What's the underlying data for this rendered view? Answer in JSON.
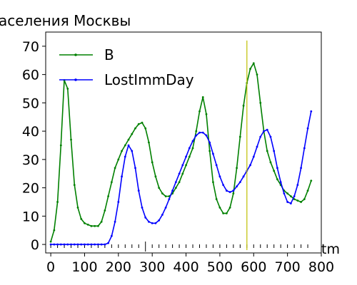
{
  "chart_data": {
    "type": "line",
    "title": "аселения Москвы",
    "xlabel": "tm",
    "ylabel": "",
    "xlim": [
      -15,
      800
    ],
    "ylim": [
      -3,
      75
    ],
    "xticks": [
      0,
      100,
      200,
      300,
      400,
      500,
      600,
      700,
      800
    ],
    "yticks": [
      0,
      10,
      20,
      30,
      40,
      50,
      60,
      70
    ],
    "grid": false,
    "legend_position": "top-left",
    "series": [
      {
        "name": "B",
        "color": "#008000",
        "marker": "dot",
        "x": [
          0,
          10,
          20,
          30,
          40,
          50,
          60,
          70,
          80,
          90,
          100,
          110,
          120,
          130,
          140,
          150,
          160,
          170,
          180,
          190,
          200,
          210,
          220,
          230,
          240,
          250,
          260,
          270,
          280,
          290,
          300,
          310,
          320,
          330,
          340,
          350,
          360,
          370,
          380,
          390,
          400,
          410,
          420,
          430,
          440,
          450,
          460,
          470,
          480,
          490,
          500,
          510,
          520,
          530,
          540,
          550,
          560,
          570,
          580,
          590,
          600,
          610,
          620,
          630,
          640,
          650,
          660,
          670,
          680,
          690,
          700,
          710,
          720,
          730,
          740,
          750,
          760,
          770
        ],
        "y": [
          1,
          5,
          15,
          35,
          58,
          55,
          37,
          21,
          13,
          9,
          7.5,
          7,
          6.5,
          6.5,
          6.5,
          8,
          12,
          17,
          22,
          27,
          30,
          33,
          35,
          37,
          39,
          41,
          42.5,
          43,
          41,
          36,
          29,
          24,
          20,
          18,
          17,
          17,
          18,
          20,
          22,
          25,
          28,
          31,
          34,
          40,
          47,
          52,
          46,
          33,
          22,
          16,
          13,
          11,
          11,
          13,
          18,
          27,
          38,
          49,
          57,
          62,
          64,
          60,
          50,
          40,
          33,
          29,
          26,
          23,
          21,
          19,
          18,
          17,
          16,
          15.5,
          15,
          16,
          19,
          22.5
        ]
      },
      {
        "name": "LostImmDay",
        "color": "#0000ff",
        "marker": "dot",
        "x": [
          0,
          10,
          20,
          30,
          40,
          50,
          60,
          70,
          80,
          90,
          100,
          110,
          120,
          130,
          140,
          150,
          160,
          170,
          180,
          190,
          200,
          210,
          220,
          230,
          240,
          250,
          260,
          270,
          280,
          290,
          300,
          310,
          320,
          330,
          340,
          350,
          360,
          370,
          380,
          390,
          400,
          410,
          420,
          430,
          440,
          450,
          460,
          470,
          480,
          490,
          500,
          510,
          520,
          530,
          540,
          550,
          560,
          570,
          580,
          590,
          600,
          610,
          620,
          630,
          640,
          650,
          660,
          670,
          680,
          690,
          700,
          710,
          720,
          730,
          740,
          750,
          760,
          770
        ],
        "y": [
          0,
          0,
          0,
          0,
          0,
          0,
          0,
          0,
          0,
          0,
          0,
          0,
          0,
          0,
          0,
          0,
          0,
          0.5,
          3,
          8,
          15,
          24,
          31,
          35,
          33,
          27,
          19,
          13,
          9.5,
          8,
          7.5,
          7.5,
          8.5,
          10.5,
          13,
          16,
          19,
          22,
          25,
          28,
          31,
          34,
          36.5,
          38.5,
          39.5,
          39.5,
          38.5,
          36,
          32,
          28,
          24,
          21,
          19,
          18.5,
          19,
          20.5,
          22,
          24,
          26,
          28,
          31,
          34.5,
          38,
          40,
          40.5,
          38,
          33,
          27,
          22,
          18,
          15,
          14.5,
          17,
          21,
          27,
          34,
          41,
          47
        ]
      },
      {
        "name": "",
        "color": "#bfbf00",
        "marker": "none",
        "x": [
          580,
          580
        ],
        "y": [
          -2,
          72
        ]
      }
    ]
  }
}
